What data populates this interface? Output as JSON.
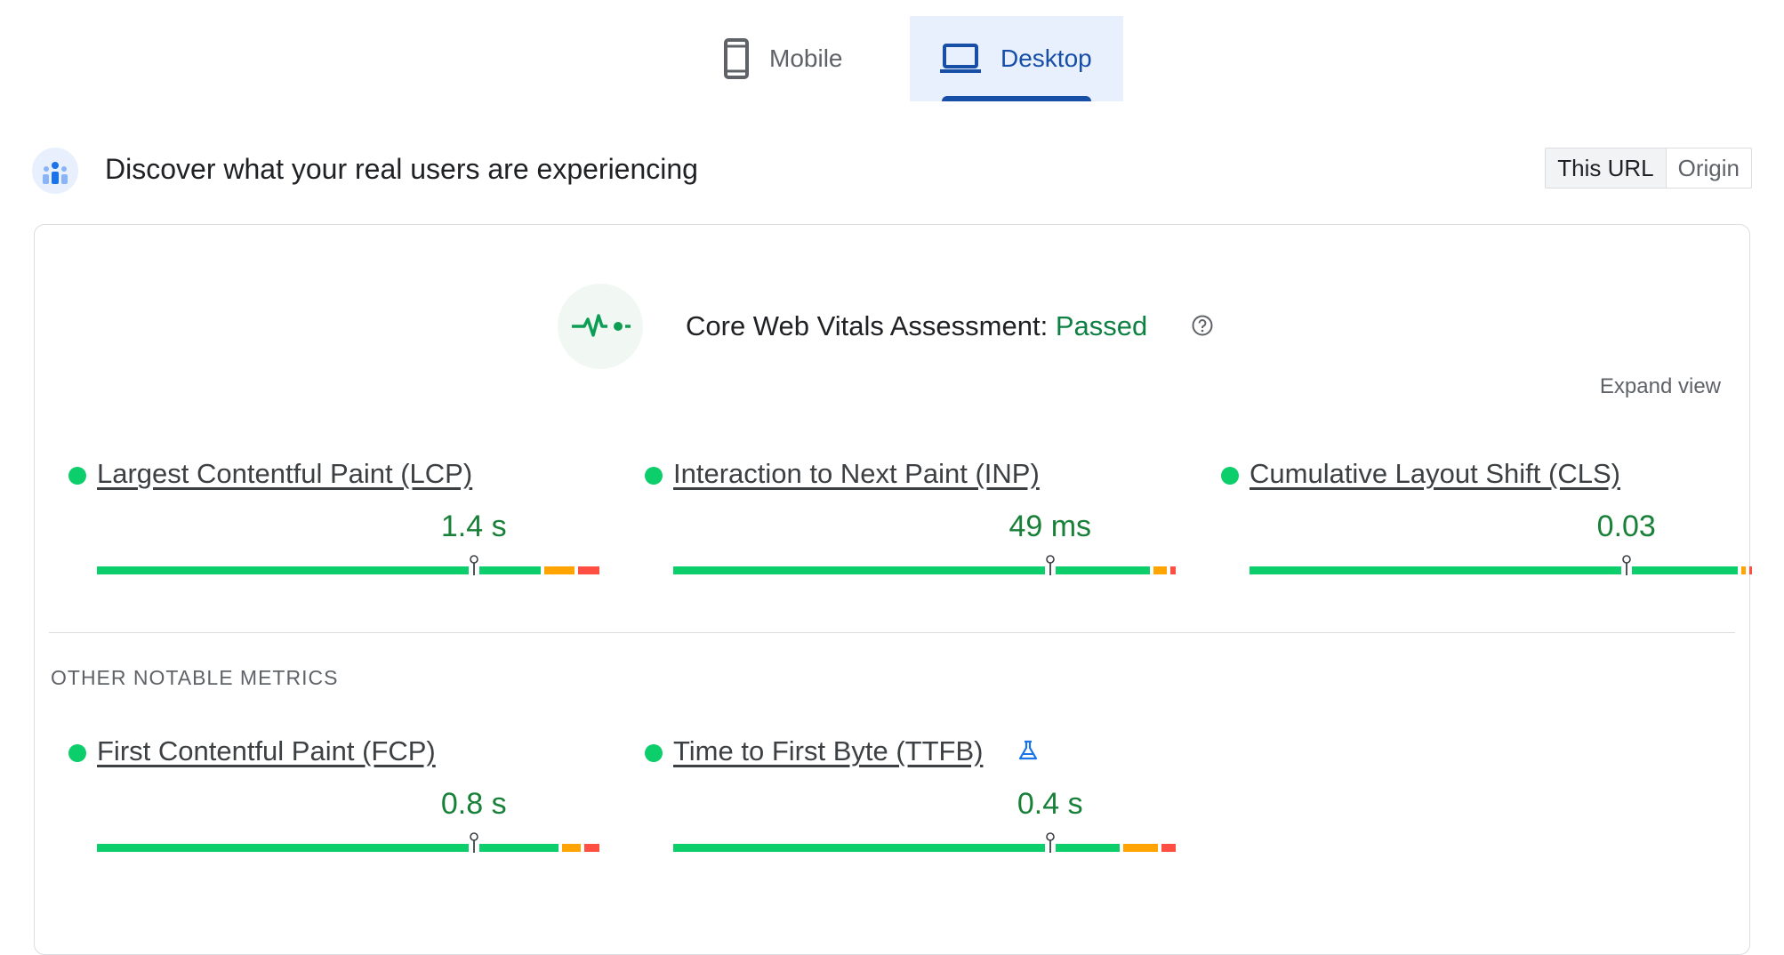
{
  "tabs": [
    {
      "label": "Mobile",
      "icon": "phone-icon",
      "selected": false
    },
    {
      "label": "Desktop",
      "icon": "laptop-icon",
      "selected": true
    }
  ],
  "header": {
    "title": "Discover what your real users are experiencing",
    "scope_options": [
      "This URL",
      "Origin"
    ],
    "scope_selected": "This URL"
  },
  "assessment": {
    "label": "Core Web Vitals Assessment:",
    "status": "Passed",
    "expand_label": "Expand view"
  },
  "core_metrics": [
    {
      "name": "Largest Contentful Paint (LCP)",
      "value": "1.4 s",
      "status": "good",
      "distribution": {
        "good": 0.895,
        "needs_improvement": 0.062,
        "poor": 0.043
      }
    },
    {
      "name": "Interaction to Next Paint (INP)",
      "value": "49 ms",
      "status": "good",
      "distribution": {
        "good": 0.962,
        "needs_improvement": 0.028,
        "poor": 0.01
      }
    },
    {
      "name": "Cumulative Layout Shift (CLS)",
      "value": "0.03",
      "status": "good",
      "distribution": {
        "good": 0.986,
        "needs_improvement": 0.008,
        "poor": 0.006
      }
    }
  ],
  "other_label": "OTHER NOTABLE METRICS",
  "other_metrics": [
    {
      "name": "First Contentful Paint (FCP)",
      "value": "0.8 s",
      "status": "good",
      "experimental": false,
      "distribution": {
        "good": 0.931,
        "needs_improvement": 0.039,
        "poor": 0.03
      }
    },
    {
      "name": "Time to First Byte (TTFB)",
      "value": "0.4 s",
      "status": "good",
      "experimental": true,
      "distribution": {
        "good": 0.902,
        "needs_improvement": 0.07,
        "poor": 0.028
      }
    }
  ],
  "colors": {
    "good": "#0cce6b",
    "needs_improvement": "#ffa400",
    "poor": "#ff4e42",
    "accent": "#174ea6",
    "pass_text": "#188038"
  }
}
